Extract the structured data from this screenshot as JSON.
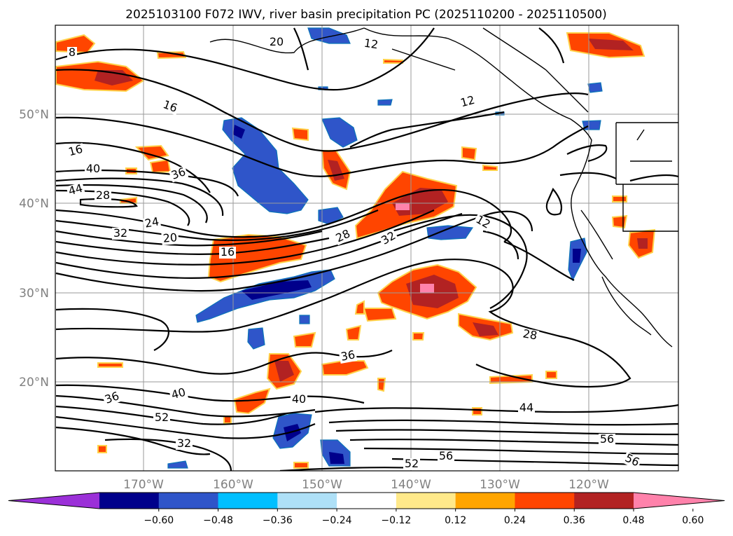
{
  "chart_data": {
    "type": "map",
    "title": "2025103100 F072 IWV, river basin precipitation PC (2025110200 - 2025110500)",
    "lat_labels": [
      "50°N",
      "40°N",
      "30°N",
      "20°N"
    ],
    "lon_labels": [
      "170°W",
      "160°W",
      "150°W",
      "140°W",
      "130°W",
      "120°W"
    ],
    "extent": {
      "lon": [
        -180,
        -110
      ],
      "lat": [
        10,
        60
      ]
    },
    "contour_variable": "IWV",
    "contour_labels": [
      "8",
      "12",
      "16",
      "12",
      "16",
      "40",
      "44",
      "28",
      "36",
      "24",
      "32",
      "20",
      "16",
      "28",
      "32",
      "12",
      "20",
      "28",
      "36",
      "40",
      "36",
      "40",
      "52",
      "32",
      "44",
      "56",
      "56",
      "52",
      "56"
    ],
    "colorbar": {
      "ticks": [
        "−0.60",
        "−0.48",
        "−0.36",
        "−0.24",
        "−0.12",
        "0.12",
        "0.24",
        "0.36",
        "0.48",
        "0.60"
      ],
      "colors": [
        "#9b30d8",
        "#00008b",
        "#2f55c9",
        "#00bfff",
        "#aee0f7",
        "#ffffff",
        "#ffe98a",
        "#ffa500",
        "#ff4500",
        "#b22222",
        "#ff82ab"
      ]
    }
  }
}
